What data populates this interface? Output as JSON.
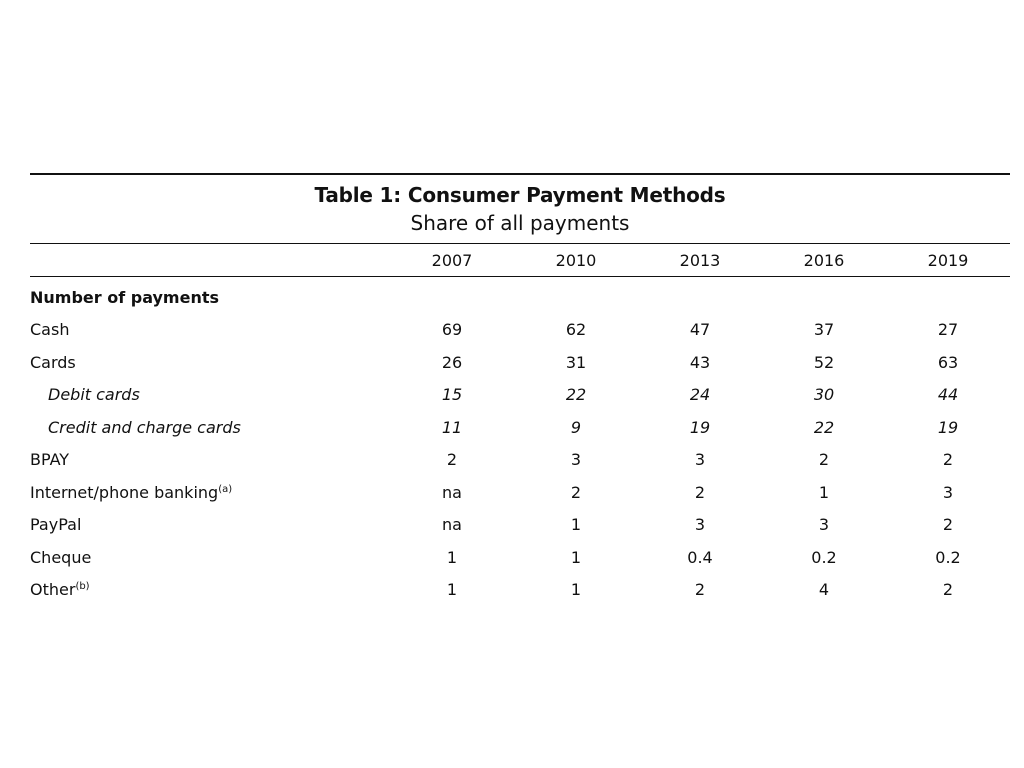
{
  "table": {
    "title": "Table 1: Consumer Payment Methods",
    "subtitle": "Share of all payments",
    "years": [
      "2007",
      "2010",
      "2013",
      "2016",
      "2019"
    ],
    "section_label": "Number of payments",
    "rows": [
      {
        "label": "Cash",
        "note": "",
        "values": [
          "69",
          "62",
          "47",
          "37",
          "27"
        ]
      },
      {
        "label": "Cards",
        "note": "",
        "values": [
          "26",
          "31",
          "43",
          "52",
          "63"
        ]
      },
      {
        "label": "Debit cards",
        "note": "",
        "values": [
          "15",
          "22",
          "24",
          "30",
          "44"
        ]
      },
      {
        "label": "Credit and charge cards",
        "note": "",
        "values": [
          "11",
          "9",
          "19",
          "22",
          "19"
        ]
      },
      {
        "label": "BPAY",
        "note": "",
        "values": [
          "2",
          "3",
          "3",
          "2",
          "2"
        ]
      },
      {
        "label": "Internet/phone banking",
        "note": "(a)",
        "values": [
          "na",
          "2",
          "2",
          "1",
          "3"
        ]
      },
      {
        "label": "PayPal",
        "note": "",
        "values": [
          "na",
          "1",
          "3",
          "3",
          "2"
        ]
      },
      {
        "label": "Cheque",
        "note": "",
        "values": [
          "1",
          "1",
          "0.4",
          "0.2",
          "0.2"
        ]
      },
      {
        "label": "Other",
        "note": "(b)",
        "values": [
          "1",
          "1",
          "2",
          "4",
          "2"
        ]
      }
    ]
  }
}
